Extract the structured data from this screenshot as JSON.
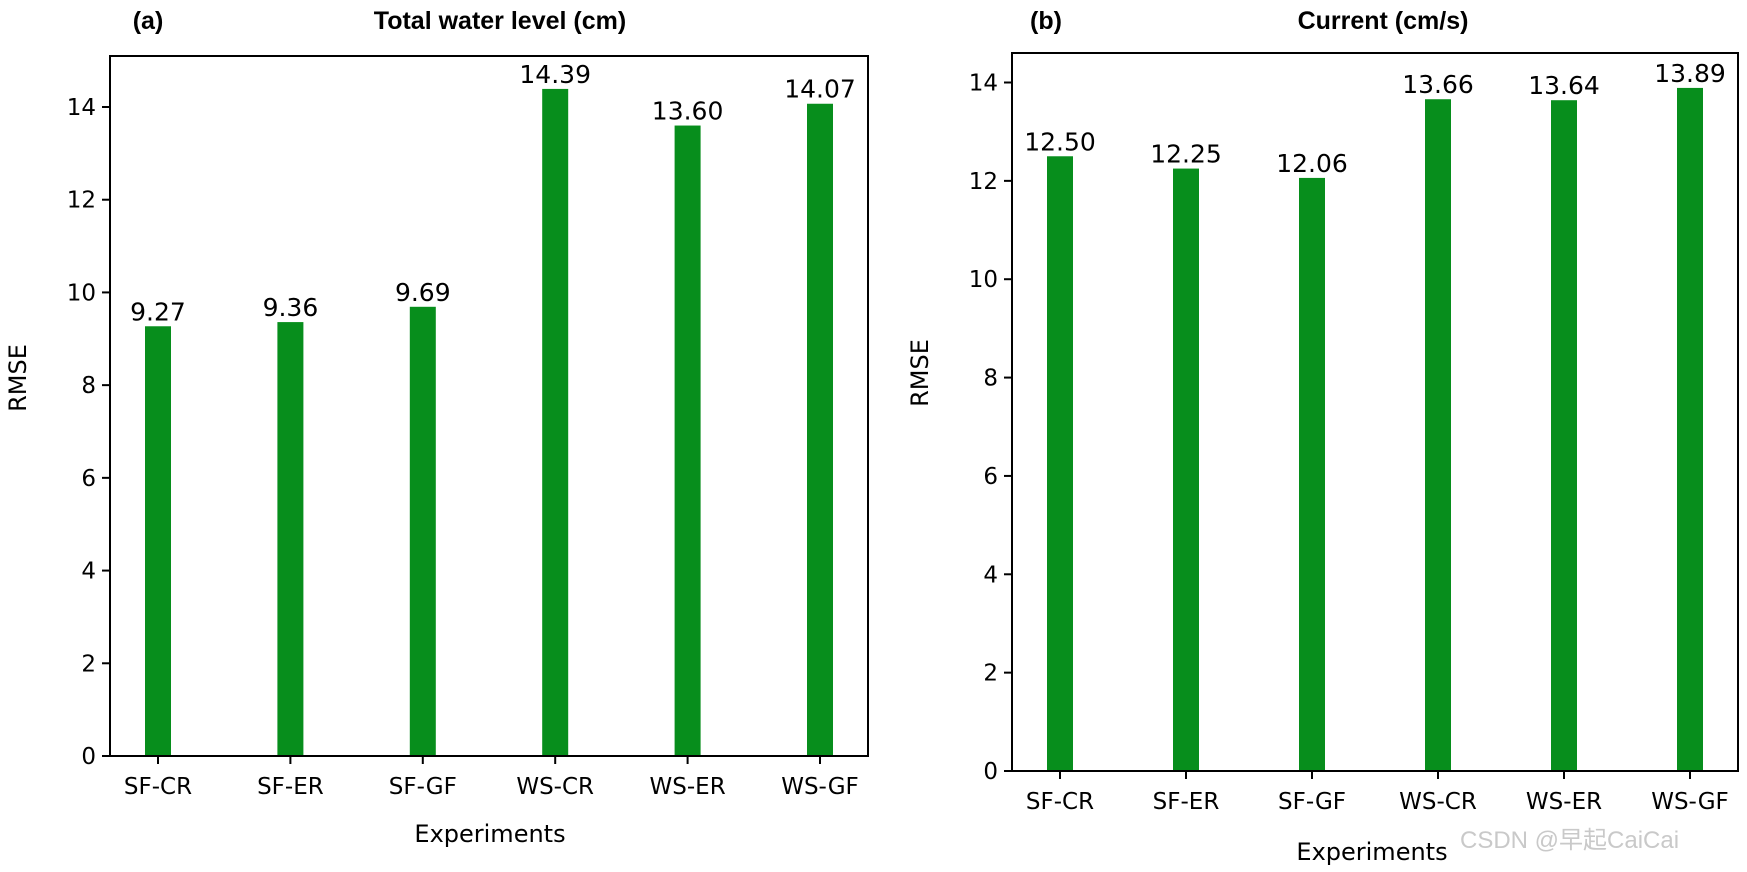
{
  "colors": {
    "bar": "#078e1c",
    "axis": "#000000",
    "watermark": "#c9c9c9"
  },
  "watermark": "CSDN @早起CaiCai",
  "chart_data": [
    {
      "type": "bar",
      "panel": "(a)",
      "title": "Total water level (cm)",
      "xlabel": "Experiments",
      "ylabel": "RMSE",
      "categories": [
        "SF-CR",
        "SF-ER",
        "SF-GF",
        "WS-CR",
        "WS-ER",
        "WS-GF"
      ],
      "values": [
        9.27,
        9.36,
        9.69,
        14.39,
        13.6,
        14.07
      ],
      "value_labels": [
        "9.27",
        "9.36",
        "9.69",
        "14.39",
        "13.60",
        "14.07"
      ],
      "ylim": [
        0,
        15.1
      ],
      "yticks": [
        0,
        2,
        4,
        6,
        8,
        10,
        12,
        14
      ],
      "grid": false,
      "legend": "none"
    },
    {
      "type": "bar",
      "panel": "(b)",
      "title": "Current (cm/s)",
      "xlabel": "Experiments",
      "ylabel": "RMSE",
      "categories": [
        "SF-CR",
        "SF-ER",
        "SF-GF",
        "WS-CR",
        "WS-ER",
        "WS-GF"
      ],
      "values": [
        12.5,
        12.25,
        12.06,
        13.66,
        13.64,
        13.89
      ],
      "value_labels": [
        "12.50",
        "12.25",
        "12.06",
        "13.66",
        "13.64",
        "13.89"
      ],
      "ylim": [
        0,
        14.6
      ],
      "yticks": [
        0,
        2,
        4,
        6,
        8,
        10,
        12,
        14
      ],
      "grid": false,
      "legend": "none"
    }
  ]
}
